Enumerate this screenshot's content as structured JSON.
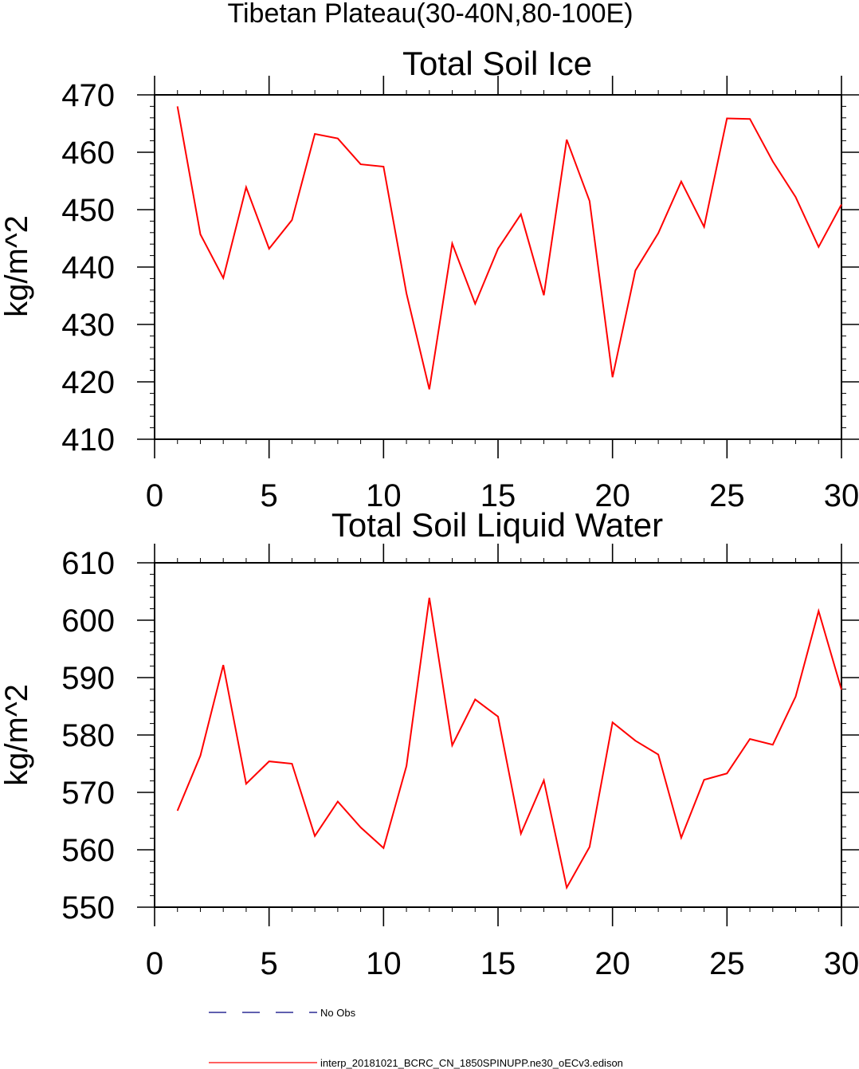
{
  "figure": {
    "main_title": "Tibetan Plateau(30-40N,80-100E)"
  },
  "chart_data": [
    {
      "type": "line",
      "title": "Total Soil Ice",
      "xlabel": "",
      "ylabel": "kg/m^2",
      "xlim": [
        0,
        30
      ],
      "ylim": [
        410,
        470
      ],
      "x_ticks": [
        0,
        5,
        10,
        15,
        20,
        25,
        30
      ],
      "y_ticks": [
        410,
        420,
        430,
        440,
        450,
        460,
        470
      ],
      "grid": false,
      "series": [
        {
          "name": "interp_20181021_BCRC_CN_1850SPINUPP.ne30_oECv3.edison",
          "color": "#ff0000",
          "x": [
            1,
            2,
            3,
            4,
            5,
            6,
            7,
            8,
            9,
            10,
            11,
            12,
            13,
            14,
            15,
            16,
            17,
            18,
            19,
            20,
            21,
            22,
            23,
            24,
            25,
            26,
            27,
            28,
            29,
            30
          ],
          "values": [
            468.0,
            445.7,
            438.1,
            453.9,
            443.2,
            448.2,
            463.2,
            462.4,
            457.9,
            457.5,
            435.4,
            418.7,
            444.1,
            433.6,
            443.2,
            449.2,
            435.1,
            462.2,
            451.5,
            420.8,
            439.4,
            445.9,
            454.9,
            447.0,
            465.9,
            465.8,
            458.4,
            452.2,
            443.5,
            450.9
          ]
        }
      ]
    },
    {
      "type": "line",
      "title": "Total Soil Liquid Water",
      "xlabel": "",
      "ylabel": "kg/m^2",
      "xlim": [
        0,
        30
      ],
      "ylim": [
        550,
        610
      ],
      "x_ticks": [
        0,
        5,
        10,
        15,
        20,
        25,
        30
      ],
      "y_ticks": [
        550,
        560,
        570,
        580,
        590,
        600,
        610
      ],
      "grid": false,
      "series": [
        {
          "name": "interp_20181021_BCRC_CN_1850SPINUPP.ne30_oECv3.edison",
          "color": "#ff0000",
          "x": [
            1,
            2,
            3,
            4,
            5,
            6,
            7,
            8,
            9,
            10,
            11,
            12,
            13,
            14,
            15,
            16,
            17,
            18,
            19,
            20,
            21,
            22,
            23,
            24,
            25,
            26,
            27,
            28,
            29,
            30
          ],
          "values": [
            566.8,
            576.4,
            592.2,
            571.5,
            575.4,
            575.0,
            562.4,
            568.4,
            563.9,
            560.3,
            574.6,
            603.9,
            578.2,
            586.2,
            583.2,
            562.8,
            572.1,
            553.4,
            560.5,
            582.2,
            579.0,
            576.6,
            562.1,
            572.2,
            573.3,
            579.3,
            578.3,
            586.7,
            601.6,
            587.9
          ]
        }
      ]
    }
  ],
  "legend": [
    {
      "label": "No Obs",
      "color": "#00007f",
      "style": "dashed"
    },
    {
      "label": "interp_20181021_BCRC_CN_1850SPINUPP.ne30_oECv3.edison",
      "color": "#ff0000",
      "style": "solid"
    }
  ]
}
